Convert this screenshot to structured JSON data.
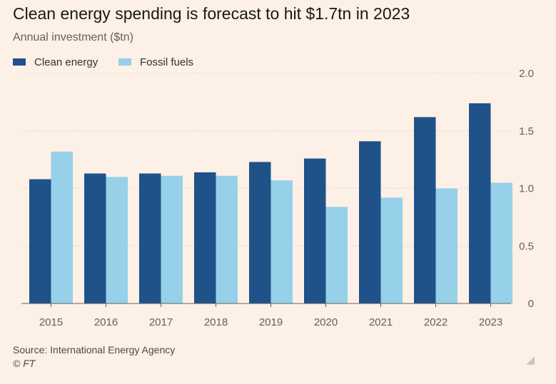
{
  "header": {
    "title": "Clean energy spending is forecast to hit $1.7tn in 2023",
    "subtitle": "Annual investment ($tn)"
  },
  "legend": [
    {
      "label": "Clean energy",
      "color": "#1f5289"
    },
    {
      "label": "Fossil fuels",
      "color": "#96d1e9"
    }
  ],
  "footer": {
    "source": "Source: International Energy Agency",
    "credit": "© FT"
  },
  "icons": {
    "corner": "resize-icon"
  },
  "chart_data": {
    "type": "bar",
    "title": "Clean energy spending is forecast to hit $1.7tn in 2023",
    "ylabel": "Annual investment ($tn)",
    "xlabel": "",
    "categories": [
      "2015",
      "2016",
      "2017",
      "2018",
      "2019",
      "2020",
      "2021",
      "2022",
      "2023"
    ],
    "series": [
      {
        "name": "Clean energy",
        "color": "#1f5289",
        "values": [
          1.08,
          1.13,
          1.13,
          1.14,
          1.23,
          1.26,
          1.41,
          1.62,
          1.74
        ]
      },
      {
        "name": "Fossil fuels",
        "color": "#96d1e9",
        "values": [
          1.32,
          1.1,
          1.11,
          1.11,
          1.07,
          0.84,
          0.92,
          1.0,
          1.05
        ]
      }
    ],
    "ylim": [
      0,
      2.0
    ],
    "yticks": [
      0,
      0.5,
      1.0,
      1.5,
      2.0
    ],
    "ytick_labels": [
      "0",
      "0.5",
      "1.0",
      "1.5",
      "2.0"
    ],
    "y_axis_side": "right",
    "grid": true,
    "legend_position": "top-left"
  }
}
